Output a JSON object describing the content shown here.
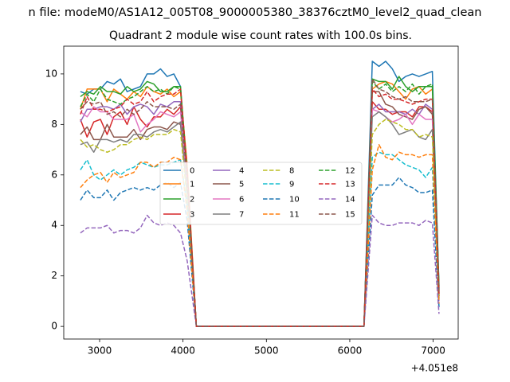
{
  "suptitle": "n file: modeM0/AS1A12_005T08_9000005380_38376cztM0_level2_quad_clean",
  "title": "Quadrant 2 module wise count rates with 100.0s bins.",
  "x_offset_label": "+4.051e8",
  "colors": [
    "#1f77b4",
    "#ff7f0e",
    "#2ca02c",
    "#d62728",
    "#9467bd",
    "#8c564b",
    "#e377c2",
    "#7f7f7f",
    "#bcbd22",
    "#17becf",
    "#1f77b4",
    "#ff7f0e",
    "#2ca02c",
    "#d62728",
    "#9467bd",
    "#8c564b"
  ],
  "chart_data": {
    "type": "line",
    "title": "Quadrant 2 module wise count rates with 100.0s bins.",
    "xlabel": "",
    "ylabel": "",
    "x_offset": 405100000,
    "xlim": [
      2570,
      7300
    ],
    "ylim": [
      -0.5,
      11.1
    ],
    "xticks": [
      3000,
      4000,
      5000,
      6000,
      7000
    ],
    "yticks": [
      0,
      2,
      4,
      6,
      8,
      10
    ],
    "grid": false,
    "legend_placement": "center",
    "legend_columns": 4,
    "x": [
      2770,
      2850,
      2930,
      3010,
      3090,
      3170,
      3250,
      3330,
      3410,
      3490,
      3570,
      3650,
      3730,
      3810,
      3890,
      3970,
      4050,
      4160,
      4260,
      4360,
      4460,
      4560,
      4660,
      4760,
      4860,
      4960,
      5060,
      5160,
      5260,
      5360,
      5460,
      5560,
      5660,
      5760,
      5860,
      5960,
      6060,
      6170,
      6270,
      6350,
      6430,
      6510,
      6590,
      6670,
      6750,
      6830,
      6910,
      6990,
      7070
    ],
    "series": [
      {
        "name": "0",
        "style": "solid",
        "values": [
          9.3,
          9.2,
          9.4,
          9.4,
          9.7,
          9.6,
          9.8,
          9.3,
          9.4,
          9.5,
          10.0,
          10.0,
          10.2,
          9.9,
          10.0,
          9.5,
          5.9,
          0,
          0,
          0,
          0,
          0,
          0,
          0,
          0,
          0,
          0,
          0,
          0,
          0,
          0,
          0,
          0,
          0,
          0,
          0,
          0,
          0,
          10.5,
          10.3,
          10.5,
          10.2,
          9.7,
          9.9,
          10.0,
          9.9,
          10.0,
          10.1,
          1.5
        ]
      },
      {
        "name": "1",
        "style": "solid",
        "values": [
          8.6,
          9.4,
          9.4,
          9.4,
          8.9,
          9.4,
          9.2,
          9.0,
          9.3,
          9.1,
          9.5,
          9.3,
          9.2,
          9.4,
          9.1,
          9.3,
          6.4,
          0,
          0,
          0,
          0,
          0,
          0,
          0,
          0,
          0,
          0,
          0,
          0,
          0,
          0,
          0,
          0,
          0,
          0,
          0,
          0,
          0,
          9.4,
          9.6,
          9.7,
          9.6,
          9.3,
          9.0,
          9.4,
          9.5,
          9.2,
          9.4,
          1.4
        ]
      },
      {
        "name": "2",
        "style": "solid",
        "values": [
          9.1,
          9.3,
          9.2,
          9.5,
          9.3,
          9.3,
          9.2,
          9.5,
          9.3,
          9.4,
          9.7,
          9.6,
          9.3,
          9.3,
          9.5,
          9.5,
          6.1,
          0,
          0,
          0,
          0,
          0,
          0,
          0,
          0,
          0,
          0,
          0,
          0,
          0,
          0,
          0,
          0,
          0,
          0,
          0,
          0,
          0,
          9.8,
          9.7,
          9.7,
          9.4,
          9.9,
          9.5,
          9.3,
          9.5,
          9.5,
          9.5,
          1.6
        ]
      },
      {
        "name": "3",
        "style": "solid",
        "values": [
          8.2,
          7.5,
          8.1,
          8.2,
          7.6,
          8.3,
          8.5,
          8.0,
          8.7,
          8.2,
          7.9,
          8.3,
          8.3,
          8.6,
          8.4,
          8.7,
          6.0,
          0,
          0,
          0,
          0,
          0,
          0,
          0,
          0,
          0,
          0,
          0,
          0,
          0,
          0,
          0,
          0,
          0,
          0,
          0,
          0,
          0,
          8.9,
          8.6,
          8.6,
          8.4,
          8.5,
          8.5,
          8.3,
          8.7,
          8.7,
          8.5,
          1.2
        ]
      },
      {
        "name": "4",
        "style": "solid",
        "values": [
          8.1,
          8.6,
          8.6,
          8.7,
          8.7,
          8.6,
          8.8,
          8.4,
          8.7,
          8.8,
          8.7,
          8.4,
          8.8,
          8.7,
          8.9,
          8.9,
          5.4,
          0,
          0,
          0,
          0,
          0,
          0,
          0,
          0,
          0,
          0,
          0,
          0,
          0,
          0,
          0,
          0,
          0,
          0,
          0,
          0,
          0,
          8.6,
          8.8,
          8.5,
          8.5,
          8.5,
          8.4,
          8.6,
          8.4,
          8.8,
          8.6,
          1.3
        ]
      },
      {
        "name": "5",
        "style": "solid",
        "values": [
          7.6,
          7.9,
          7.4,
          7.4,
          8.0,
          7.5,
          7.5,
          7.5,
          7.8,
          7.4,
          7.8,
          7.9,
          7.9,
          7.8,
          8.1,
          8.0,
          5.3,
          0,
          0,
          0,
          0,
          0,
          0,
          0,
          0,
          0,
          0,
          0,
          0,
          0,
          0,
          0,
          0,
          0,
          0,
          0,
          0,
          0,
          9.3,
          9.3,
          8.8,
          8.7,
          8.4,
          8.3,
          8.2,
          8.6,
          8.7,
          8.4,
          1.2
        ]
      },
      {
        "name": "6",
        "style": "solid",
        "values": [
          8.5,
          8.3,
          8.7,
          8.5,
          8.5,
          8.2,
          8.2,
          8.2,
          8.4,
          7.7,
          8.0,
          8.2,
          8.5,
          8.4,
          8.3,
          8.5,
          5.5,
          0,
          0,
          0,
          0,
          0,
          0,
          0,
          0,
          0,
          0,
          0,
          0,
          0,
          0,
          0,
          0,
          0,
          0,
          0,
          0,
          0,
          8.6,
          8.5,
          8.3,
          8.1,
          8.2,
          8.4,
          8.0,
          8.4,
          8.2,
          8.2,
          1.0
        ]
      },
      {
        "name": "7",
        "style": "solid",
        "values": [
          7.2,
          7.3,
          6.9,
          7.4,
          7.4,
          7.3,
          7.4,
          7.3,
          7.6,
          7.6,
          7.5,
          7.7,
          7.8,
          7.7,
          7.9,
          8.1,
          5.2,
          0,
          0,
          0,
          0,
          0,
          0,
          0,
          0,
          0,
          0,
          0,
          0,
          0,
          0,
          0,
          0,
          0,
          0,
          0,
          0,
          0,
          8.3,
          8.5,
          8.3,
          8.0,
          7.6,
          7.7,
          7.8,
          7.5,
          7.4,
          7.8,
          1.1
        ]
      },
      {
        "name": "8",
        "style": "dashed",
        "values": [
          7.4,
          7.1,
          7.2,
          7.0,
          6.9,
          7.0,
          7.2,
          7.2,
          7.4,
          7.5,
          7.4,
          7.6,
          7.6,
          7.6,
          7.8,
          7.7,
          5.0,
          0,
          0,
          0,
          0,
          0,
          0,
          0,
          0,
          0,
          0,
          0,
          0,
          0,
          0,
          0,
          0,
          0,
          0,
          0,
          0,
          0,
          7.6,
          8.0,
          8.2,
          8.1,
          8.0,
          7.8,
          7.8,
          7.5,
          7.6,
          7.5,
          1.1
        ]
      },
      {
        "name": "9",
        "style": "dashed",
        "values": [
          6.2,
          6.6,
          6.0,
          5.8,
          6.0,
          6.2,
          6.0,
          6.2,
          6.3,
          6.5,
          6.4,
          6.3,
          6.4,
          6.4,
          6.5,
          6.6,
          4.8,
          0,
          0,
          0,
          0,
          0,
          0,
          0,
          0,
          0,
          0,
          0,
          0,
          0,
          0,
          0,
          0,
          0,
          0,
          0,
          0,
          0,
          6.7,
          6.9,
          6.8,
          6.8,
          6.6,
          6.4,
          6.3,
          6.2,
          5.9,
          6.3,
          0.8
        ]
      },
      {
        "name": "10",
        "style": "dashed",
        "values": [
          5.0,
          5.4,
          5.1,
          5.1,
          5.4,
          5.0,
          5.3,
          5.4,
          5.5,
          5.4,
          5.5,
          5.4,
          5.6,
          5.7,
          5.5,
          5.7,
          4.2,
          0,
          0,
          0,
          0,
          0,
          0,
          0,
          0,
          0,
          0,
          0,
          0,
          0,
          0,
          0,
          0,
          0,
          0,
          0,
          0,
          0,
          5.2,
          5.6,
          5.6,
          5.6,
          5.9,
          5.6,
          5.5,
          5.3,
          5.3,
          5.4,
          0.7
        ]
      },
      {
        "name": "11",
        "style": "dashed",
        "values": [
          5.5,
          5.8,
          6.0,
          6.1,
          5.7,
          6.1,
          5.9,
          6.0,
          6.1,
          6.5,
          6.5,
          6.3,
          6.5,
          6.5,
          6.7,
          6.6,
          4.6,
          0,
          0,
          0,
          0,
          0,
          0,
          0,
          0,
          0,
          0,
          0,
          0,
          0,
          0,
          0,
          0,
          0,
          0,
          0,
          0,
          0,
          6.2,
          7.2,
          6.7,
          6.6,
          6.9,
          6.8,
          6.8,
          6.7,
          6.8,
          6.8,
          0.9
        ]
      },
      {
        "name": "12",
        "style": "dashed",
        "values": [
          8.7,
          9.2,
          8.9,
          9.4,
          9.0,
          8.9,
          8.8,
          9.0,
          9.1,
          9.3,
          9.5,
          9.3,
          9.4,
          9.2,
          9.5,
          9.4,
          6.0,
          0,
          0,
          0,
          0,
          0,
          0,
          0,
          0,
          0,
          0,
          0,
          0,
          0,
          0,
          0,
          0,
          0,
          0,
          0,
          0,
          0,
          9.7,
          9.4,
          9.6,
          9.3,
          9.5,
          9.3,
          9.6,
          9.2,
          9.5,
          9.6,
          1.4
        ]
      },
      {
        "name": "13",
        "style": "dashed",
        "values": [
          8.4,
          9.1,
          8.6,
          8.6,
          8.5,
          8.6,
          8.7,
          9.0,
          8.8,
          8.9,
          9.3,
          8.9,
          9.1,
          9.2,
          9.2,
          9.4,
          6.2,
          0,
          0,
          0,
          0,
          0,
          0,
          0,
          0,
          0,
          0,
          0,
          0,
          0,
          0,
          0,
          0,
          0,
          0,
          0,
          0,
          0,
          9.4,
          9.1,
          9.2,
          9.0,
          9.0,
          8.9,
          8.8,
          8.9,
          9.0,
          9.0,
          1.3
        ]
      },
      {
        "name": "14",
        "style": "dashed",
        "values": [
          3.7,
          3.9,
          3.9,
          3.9,
          4.0,
          3.7,
          3.8,
          3.8,
          3.7,
          3.9,
          4.4,
          4.1,
          4.0,
          4.1,
          4.0,
          3.7,
          2.6,
          0,
          0,
          0,
          0,
          0,
          0,
          0,
          0,
          0,
          0,
          0,
          0,
          0,
          0,
          0,
          0,
          0,
          0,
          0,
          0,
          0,
          4.4,
          4.1,
          4.0,
          4.0,
          4.1,
          4.1,
          4.1,
          4.0,
          4.2,
          4.1,
          0.5
        ]
      },
      {
        "name": "15",
        "style": "dashed",
        "values": [
          8.6,
          8.9,
          8.8,
          8.9,
          8.4,
          8.5,
          8.3,
          8.6,
          8.4,
          8.6,
          8.9,
          8.7,
          8.7,
          8.7,
          8.6,
          8.8,
          5.8,
          0,
          0,
          0,
          0,
          0,
          0,
          0,
          0,
          0,
          0,
          0,
          0,
          0,
          0,
          0,
          0,
          0,
          0,
          0,
          0,
          0,
          9.8,
          9.4,
          9.3,
          9.1,
          9.0,
          9.1,
          8.9,
          8.9,
          8.9,
          9.0,
          1.3
        ]
      }
    ]
  }
}
